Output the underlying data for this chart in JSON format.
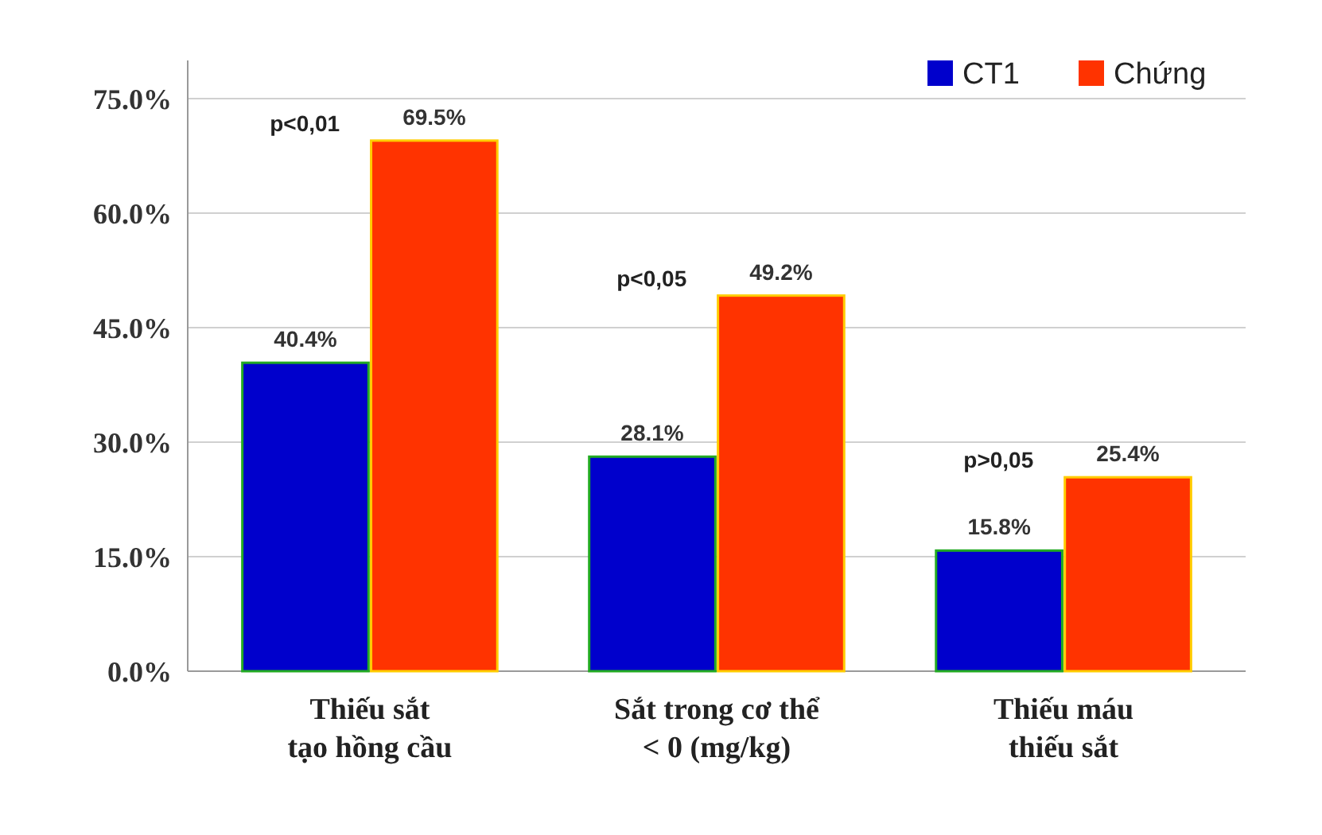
{
  "chart_data": {
    "type": "bar",
    "categories": [
      "Thiếu sắt\ntạo hồng cầu",
      "Sắt trong cơ thể\n< 0 (mg/kg)",
      "Thiếu máu\nthiếu sắt"
    ],
    "series": [
      {
        "name": "CT1",
        "color": "#0000cc",
        "values": [
          40.4,
          28.1,
          15.8
        ],
        "value_labels": [
          "40.4%",
          "28.1%",
          "15.8%"
        ]
      },
      {
        "name": "Chứng",
        "color": "#ff3300",
        "values": [
          69.5,
          49.2,
          25.4
        ],
        "value_labels": [
          "69.5%",
          "49.2%",
          "25.4%"
        ]
      }
    ],
    "ylim": [
      0,
      80
    ],
    "yticks": [
      {
        "value": 0,
        "label": "0.0%"
      },
      {
        "value": 15,
        "label": "15.0%"
      },
      {
        "value": 30,
        "label": "30.0%"
      },
      {
        "value": 45,
        "label": "45.0%"
      },
      {
        "value": 60,
        "label": "60.0%"
      },
      {
        "value": 75,
        "label": "75.0%"
      }
    ],
    "grid": "y",
    "legend": "top right",
    "annotations": [
      "p<0,01",
      "p<0,05",
      "p>0,05"
    ]
  }
}
